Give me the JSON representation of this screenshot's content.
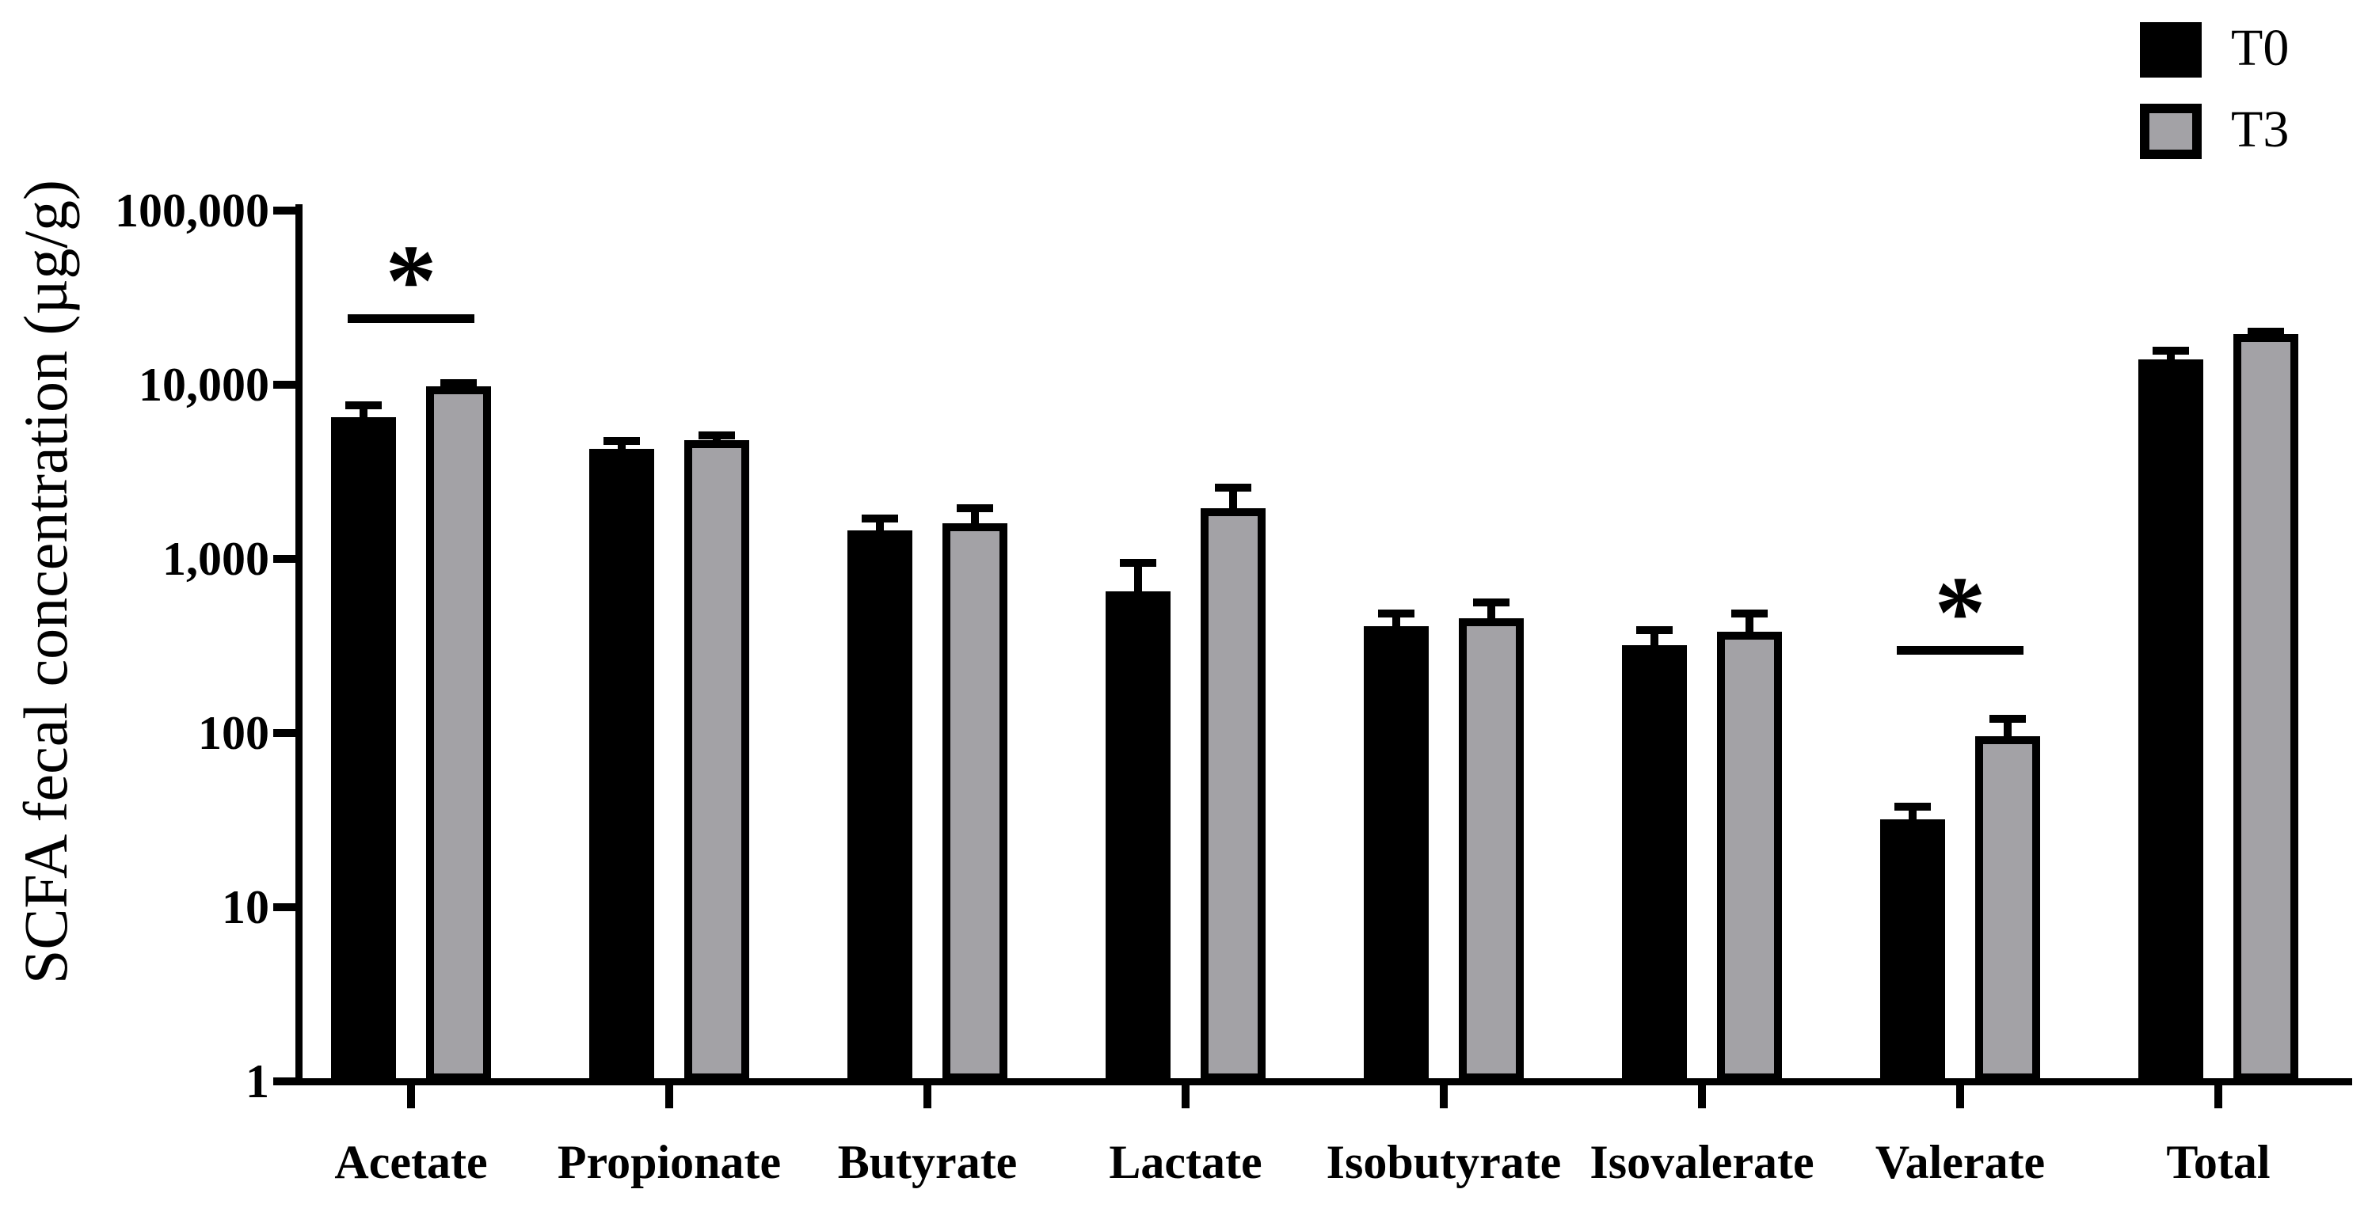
{
  "chart_data": {
    "type": "bar",
    "title": "",
    "xlabel": "",
    "ylabel": "SCFA fecal concentration (µg/g)",
    "yscale": "log10",
    "ylim": [
      1,
      100000
    ],
    "grid": false,
    "background": "#ffffff",
    "legend_position": "top-right",
    "yticks": [
      {
        "value": 100000,
        "label": "100,000"
      },
      {
        "value": 10000,
        "label": "10,000"
      },
      {
        "value": 1000,
        "label": "1,000"
      },
      {
        "value": 100,
        "label": "100"
      },
      {
        "value": 10,
        "label": "10"
      },
      {
        "value": 1,
        "label": "1"
      }
    ],
    "categories": [
      "Acetate",
      "Propionate",
      "Butyrate",
      "Lactate",
      "Isobutyrate",
      "Isovalerate",
      "Valerate",
      "Total"
    ],
    "series": [
      {
        "name": "T0",
        "color": "#000000",
        "border_color": "#000000",
        "values": [
          6500,
          4300,
          1450,
          650,
          410,
          320,
          32,
          14000
        ],
        "error_upper": [
          8000,
          5000,
          1800,
          1000,
          510,
          410,
          40,
          16500
        ]
      },
      {
        "name": "T3",
        "color": "#a3a2a6",
        "border_color": "#000000",
        "values": [
          9800,
          4800,
          1600,
          1950,
          455,
          380,
          96,
          19500
        ],
        "error_upper": [
          10800,
          5400,
          2050,
          2700,
          590,
          510,
          127,
          21200
        ]
      }
    ],
    "significance_brackets": [
      {
        "category": "Acetate",
        "label": "*",
        "line_value": 24000
      },
      {
        "category": "Valerate",
        "label": "*",
        "line_value": 300
      }
    ]
  }
}
